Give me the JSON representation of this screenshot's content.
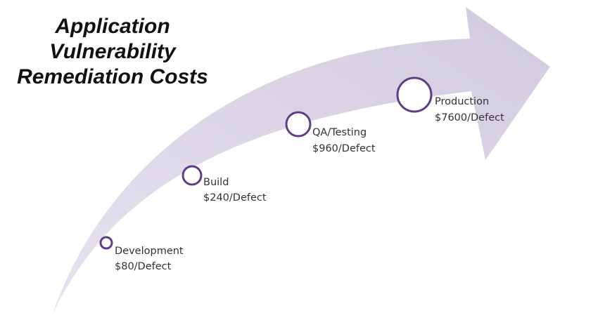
{
  "title": {
    "lines": [
      "Application",
      "Vulnerability",
      "Remediation Costs"
    ]
  },
  "stages": [
    {
      "name": "Development",
      "cost": "$80/Defect"
    },
    {
      "name": "Build",
      "cost": "$240/Defect"
    },
    {
      "name": "QA/Testing",
      "cost": "$960/Defect"
    },
    {
      "name": "Production",
      "cost": "$7600/Defect"
    }
  ],
  "colors": {
    "arrow_fill": "#d7d1e1",
    "marker_stroke": "#5e3f86",
    "title_text": "#111111",
    "label_text": "#333333"
  }
}
